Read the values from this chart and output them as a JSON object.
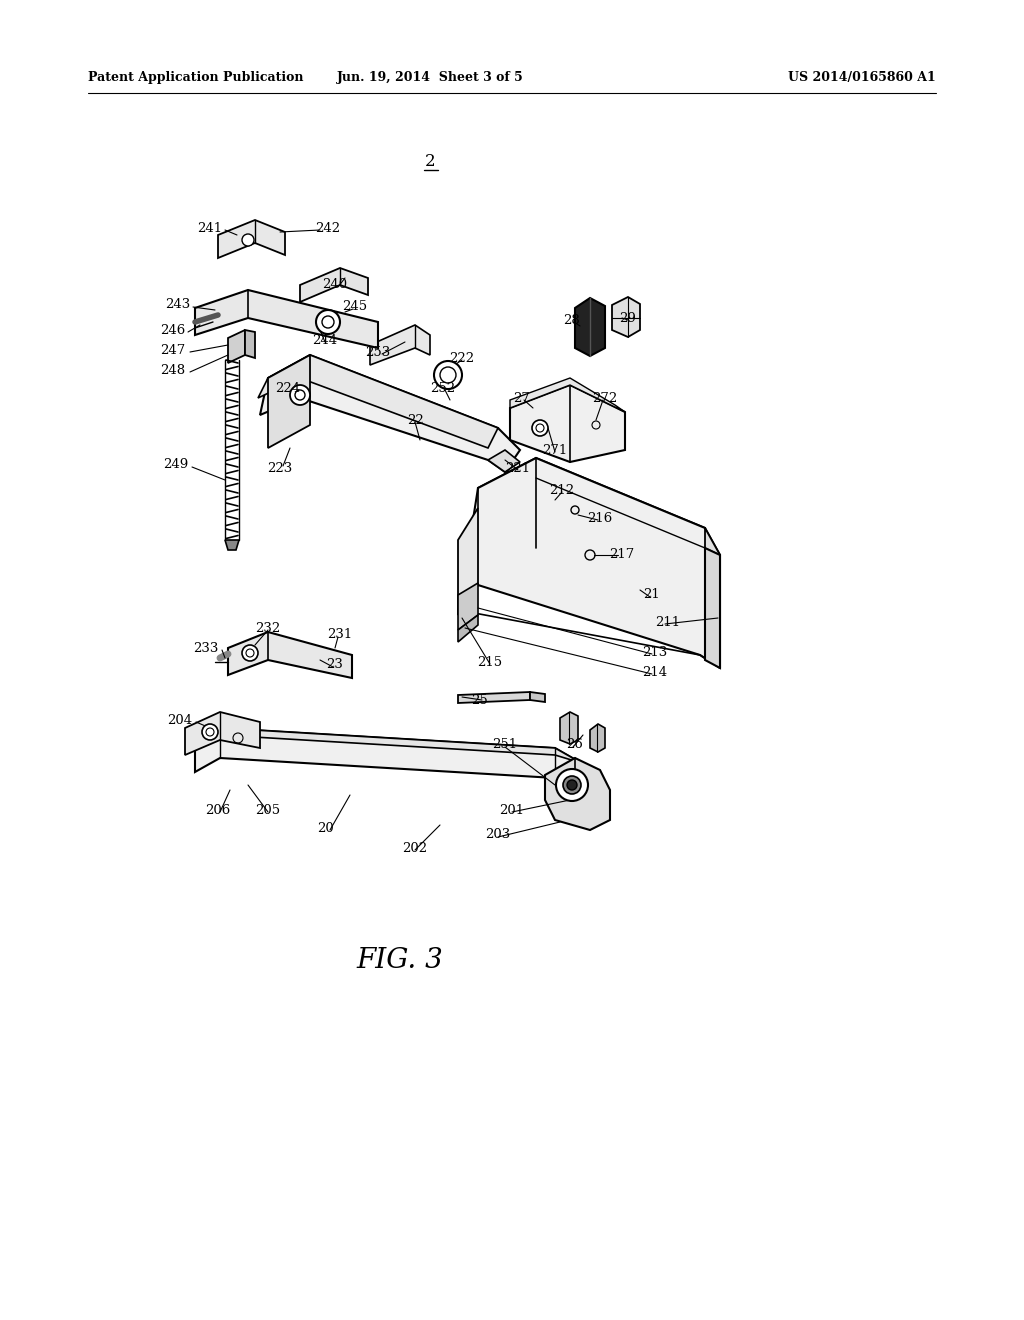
{
  "header_left": "Patent Application Publication",
  "header_center": "Jun. 19, 2014  Sheet 3 of 5",
  "header_right": "US 2014/0165860 A1",
  "figure_label": "FIG. 3",
  "background_color": "#ffffff",
  "text_color": "#000000",
  "line_color": "#000000"
}
